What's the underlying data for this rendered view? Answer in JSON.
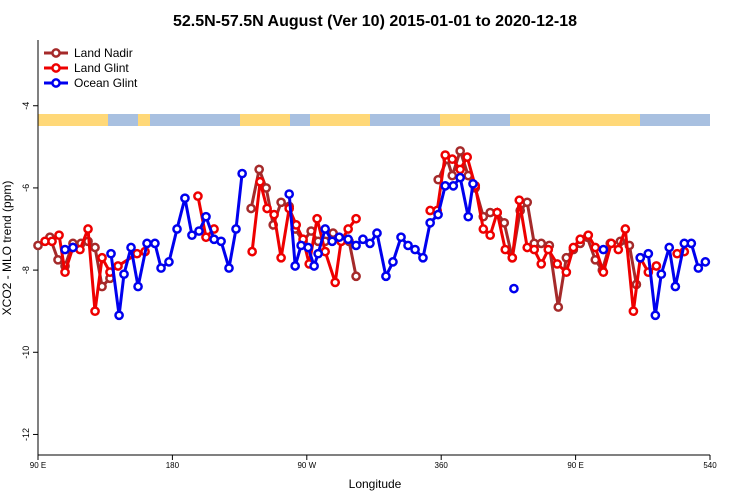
{
  "chart_data": {
    "type": "line",
    "title": "52.5N-57.5N August (Ver 10)   2015-01-01 to 2020-12-18",
    "x_label": "Longitude",
    "y_label": "XCO2 - MLO trend (ppm)",
    "xlim": [
      90,
      540
    ],
    "xticks": [
      {
        "value": 90,
        "label": "90 E"
      },
      180,
      {
        "value": 270,
        "label": "90 W"
      },
      360,
      {
        "value": 450,
        "label": "90 E"
      },
      540
    ],
    "ylim": [
      -12.5,
      -2.4
    ],
    "yticks": [
      -4,
      -6,
      -8,
      -10,
      -12
    ],
    "legend": "upper-left",
    "series": [
      {
        "name": "Land Nadir",
        "color": "#a52a2a",
        "x": [
          90,
          98,
          103.4,
          108.1,
          113.4,
          118.8,
          123.5,
          128.2,
          132.9,
          138.2,
          null,
          232.7,
          238.1,
          242.8,
          247.5,
          252.8,
          258.2,
          262.2,
          267.5,
          272.9,
          277.6,
          282.3,
          287.6,
          293,
          298.3,
          303,
          null,
          358,
          364,
          367.4,
          372.7,
          378.1,
          382.8,
          388.2,
          392.8,
          397.5,
          402.2,
          407.6,
          412.9,
          417.6,
          422.3,
          427,
          432.4,
          438.4,
          443.8,
          448.5,
          453.1,
          457.8,
          463.2,
          467.9,
          473.2,
          480,
          486,
          490.7
        ],
        "values": [
          -7.4,
          -7.2,
          -7.75,
          -7.9,
          -7.35,
          -7.35,
          -7.3,
          -7.45,
          -8.4,
          -8.2,
          null,
          -6.5,
          -5.55,
          -6.0,
          -6.9,
          -6.35,
          -6.45,
          -7.0,
          -7.3,
          -7.05,
          -7.3,
          -7.3,
          -7.1,
          -7.3,
          -7.3,
          -8.15,
          null,
          -5.8,
          -5.3,
          -5.7,
          -5.1,
          -5.7,
          -6.0,
          -6.7,
          -6.6,
          -6.6,
          -6.85,
          -7.7,
          -6.55,
          -6.35,
          -7.35,
          -7.35,
          -7.4,
          -8.9,
          -7.7,
          -7.5,
          -7.35,
          -7.2,
          -7.75,
          -8.0,
          -7.35,
          -7.3,
          -7.4,
          -8.35
        ]
      },
      {
        "name": "Land Glint",
        "color": "#ee0000",
        "x": [
          94.7,
          99.4,
          104.1,
          108.1,
          113.4,
          118.1,
          123.5,
          128.2,
          132.9,
          138.2,
          143.6,
          156.3,
          161.7,
          null,
          197.1,
          202.5,
          207.9,
          null,
          233.4,
          238.7,
          243.4,
          248.1,
          252.8,
          258.2,
          262.9,
          267.5,
          271.6,
          276.9,
          282.3,
          289,
          293,
          297.7,
          303,
          null,
          352.6,
          357.3,
          362.7,
          367.4,
          372.7,
          377.4,
          382.8,
          388.2,
          392.8,
          397.5,
          402.9,
          407.6,
          412.3,
          417.6,
          422.3,
          427,
          431.7,
          437.7,
          443.8,
          448.5,
          453.1,
          458.5,
          463.2,
          468.6,
          473.9,
          478.6,
          483.3,
          488.7,
          493.3,
          498.7,
          504.1,
          null,
          518,
          522.8
        ],
        "values": [
          -7.3,
          -7.3,
          -7.15,
          -8.05,
          -7.45,
          -7.5,
          -7.0,
          -9.0,
          -7.7,
          -8.05,
          -7.9,
          -7.6,
          -7.55,
          null,
          -6.2,
          -7.2,
          -7.0,
          null,
          -7.55,
          -5.85,
          -6.5,
          -6.65,
          -7.7,
          -6.5,
          -6.9,
          -7.25,
          -7.85,
          -6.75,
          -7.55,
          -8.3,
          -7.3,
          -7.0,
          -6.75,
          null,
          -6.55,
          -6.55,
          -5.2,
          -5.3,
          -5.55,
          -5.25,
          -5.95,
          -7.0,
          -7.15,
          -6.6,
          -7.5,
          -7.7,
          -6.3,
          -7.45,
          -7.5,
          -7.85,
          -7.5,
          -7.85,
          -8.05,
          -7.45,
          -7.25,
          -7.15,
          -7.45,
          -8.05,
          -7.35,
          -7.5,
          -7.0,
          -9.0,
          -7.7,
          -8.05,
          -7.9,
          null,
          -7.6,
          -7.55
        ]
      },
      {
        "name": "Ocean Glint",
        "color": "#0000ee",
        "x": [
          108.1,
          113.4,
          null,
          138.9,
          144.3,
          147.6,
          152.3,
          157,
          163,
          168.3,
          172.4,
          177.7,
          183.1,
          188.4,
          193.1,
          197.8,
          202.5,
          207.9,
          212.6,
          217.9,
          222.6,
          226.7,
          null,
          258.2,
          262.2,
          266.2,
          270.9,
          274.9,
          277.6,
          282.3,
          287,
          291.7,
          297.7,
          303,
          307.6,
          312.3,
          317,
          323,
          327.7,
          333.1,
          337.8,
          342.5,
          347.8,
          352.6,
          357.9,
          362.7,
          368.1,
          372.7,
          378.1,
          381.3,
          null,
          408.7,
          null,
          468.6,
          null,
          493.3,
          498.7,
          503.4,
          507.4,
          512.7,
          516.8,
          522.8,
          527.5,
          532.2,
          536.9
        ],
        "values": [
          -7.5,
          -7.45,
          null,
          -7.6,
          -9.1,
          -8.1,
          -7.45,
          -8.4,
          -7.35,
          -7.35,
          -7.95,
          -7.8,
          -7.0,
          -6.25,
          -7.15,
          -7.05,
          -6.7,
          -7.25,
          -7.3,
          -7.95,
          -7.0,
          -5.65,
          null,
          -6.15,
          -7.9,
          -7.4,
          -7.45,
          -7.9,
          -7.6,
          -7.0,
          -7.3,
          -7.2,
          -7.25,
          -7.4,
          -7.25,
          -7.35,
          -7.1,
          -8.15,
          -7.8,
          -7.2,
          -7.4,
          -7.5,
          -7.7,
          -6.85,
          -6.65,
          -5.95,
          -5.95,
          -5.75,
          -6.7,
          -5.9,
          null,
          -8.45,
          null,
          -7.5,
          null,
          -7.7,
          -7.6,
          -9.1,
          -8.1,
          -7.45,
          -8.4,
          -7.35,
          -7.35,
          -7.95,
          -7.8
        ]
      }
    ]
  }
}
